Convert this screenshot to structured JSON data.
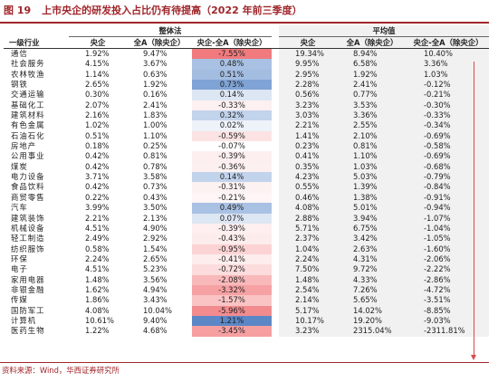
{
  "figure": {
    "number": "图 19",
    "title": "上市央企的研发投入占比仍有待提高（2022 年前三季度）"
  },
  "table": {
    "group_overall": "整体法",
    "group_average": "平均值",
    "col_industry": "一级行业",
    "col_soe": "央企",
    "col_all_a": "全A（除央企）",
    "col_diff": "央企-全A（除央企）",
    "rows": [
      {
        "industry": "通信",
        "o_soe": "1.92%",
        "o_all": "9.47%",
        "o_diff": "-7.55%",
        "o_color": "#f07a7d",
        "a_soe": "19.34%",
        "a_all": "8.94%",
        "a_diff": "10.40%"
      },
      {
        "industry": "社会服务",
        "o_soe": "4.15%",
        "o_all": "3.67%",
        "o_diff": "0.48%",
        "o_color": "#a9c1e3",
        "a_soe": "9.95%",
        "a_all": "6.58%",
        "a_diff": "3.36%"
      },
      {
        "industry": "农林牧渔",
        "o_soe": "1.14%",
        "o_all": "0.63%",
        "o_diff": "0.51%",
        "o_color": "#a3bde1",
        "a_soe": "2.95%",
        "a_all": "1.92%",
        "a_diff": "1.03%"
      },
      {
        "industry": "钢铁",
        "o_soe": "2.65%",
        "o_all": "1.92%",
        "o_diff": "0.73%",
        "o_color": "#7fa3d5",
        "a_soe": "2.28%",
        "a_all": "2.41%",
        "a_diff": "-0.12%"
      },
      {
        "industry": "交通运输",
        "o_soe": "0.30%",
        "o_all": "0.16%",
        "o_diff": "0.14%",
        "o_color": "#dde6f3",
        "a_soe": "0.56%",
        "a_all": "0.77%",
        "a_diff": "-0.21%"
      },
      {
        "industry": "基础化工",
        "o_soe": "2.07%",
        "o_all": "2.41%",
        "o_diff": "-0.33%",
        "o_color": "#fdf0f0",
        "a_soe": "3.23%",
        "a_all": "3.53%",
        "a_diff": "-0.30%"
      },
      {
        "industry": "建筑材料",
        "o_soe": "2.16%",
        "o_all": "1.83%",
        "o_diff": "0.32%",
        "o_color": "#c2d3ec",
        "a_soe": "3.03%",
        "a_all": "3.36%",
        "a_diff": "-0.33%"
      },
      {
        "industry": "有色金属",
        "o_soe": "1.02%",
        "o_all": "1.00%",
        "o_diff": "0.02%",
        "o_color": "#eef2f9",
        "a_soe": "2.21%",
        "a_all": "2.55%",
        "a_diff": "-0.34%"
      },
      {
        "industry": "石油石化",
        "o_soe": "0.51%",
        "o_all": "1.10%",
        "o_diff": "-0.59%",
        "o_color": "#fce3e3",
        "a_soe": "1.41%",
        "a_all": "2.10%",
        "a_diff": "-0.69%"
      },
      {
        "industry": "房地产",
        "o_soe": "0.18%",
        "o_all": "0.25%",
        "o_diff": "-0.07%",
        "o_color": "#ffffff",
        "a_soe": "0.23%",
        "a_all": "0.81%",
        "a_diff": "-0.58%"
      },
      {
        "industry": "公用事业",
        "o_soe": "0.42%",
        "o_all": "0.81%",
        "o_diff": "-0.39%",
        "o_color": "#fdefef",
        "a_soe": "0.41%",
        "a_all": "1.10%",
        "a_diff": "-0.69%"
      },
      {
        "industry": "煤炭",
        "o_soe": "0.42%",
        "o_all": "0.78%",
        "o_diff": "-0.36%",
        "o_color": "#fdf0f0",
        "a_soe": "0.35%",
        "a_all": "1.03%",
        "a_diff": "-0.68%"
      },
      {
        "industry": "电力设备",
        "o_soe": "3.71%",
        "o_all": "3.58%",
        "o_diff": "0.14%",
        "o_color": "#c2d3ec",
        "a_soe": "4.23%",
        "a_all": "5.03%",
        "a_diff": "-0.79%"
      },
      {
        "industry": "食品饮料",
        "o_soe": "0.42%",
        "o_all": "0.73%",
        "o_diff": "-0.31%",
        "o_color": "#fdf2f2",
        "a_soe": "0.55%",
        "a_all": "1.39%",
        "a_diff": "-0.84%"
      },
      {
        "industry": "商贸零售",
        "o_soe": "0.22%",
        "o_all": "0.43%",
        "o_diff": "-0.21%",
        "o_color": "#fef6f6",
        "a_soe": "0.46%",
        "a_all": "1.38%",
        "a_diff": "-0.91%"
      },
      {
        "industry": "汽车",
        "o_soe": "3.99%",
        "o_all": "3.50%",
        "o_diff": "0.49%",
        "o_color": "#a9c1e3",
        "a_soe": "4.08%",
        "a_all": "5.01%",
        "a_diff": "-0.94%"
      },
      {
        "industry": "建筑装饰",
        "o_soe": "2.21%",
        "o_all": "2.13%",
        "o_diff": "0.07%",
        "o_color": "#dde6f3",
        "a_soe": "2.88%",
        "a_all": "3.94%",
        "a_diff": "-1.07%"
      },
      {
        "industry": "机械设备",
        "o_soe": "4.51%",
        "o_all": "4.90%",
        "o_diff": "-0.39%",
        "o_color": "#fdefef",
        "a_soe": "5.71%",
        "a_all": "6.75%",
        "a_diff": "-1.04%"
      },
      {
        "industry": "轻工制造",
        "o_soe": "2.49%",
        "o_all": "2.92%",
        "o_diff": "-0.43%",
        "o_color": "#fdecec",
        "a_soe": "2.37%",
        "a_all": "3.42%",
        "a_diff": "-1.05%"
      },
      {
        "industry": "纺织服饰",
        "o_soe": "0.58%",
        "o_all": "1.54%",
        "o_diff": "-0.95%",
        "o_color": "#fcd3d4",
        "a_soe": "1.04%",
        "a_all": "2.63%",
        "a_diff": "-1.60%"
      },
      {
        "industry": "环保",
        "o_soe": "2.24%",
        "o_all": "2.65%",
        "o_diff": "-0.41%",
        "o_color": "#fdeded",
        "a_soe": "2.24%",
        "a_all": "4.31%",
        "a_diff": "-2.06%"
      },
      {
        "industry": "电子",
        "o_soe": "4.51%",
        "o_all": "5.23%",
        "o_diff": "-0.72%",
        "o_color": "#fcdcdc",
        "a_soe": "7.50%",
        "a_all": "9.72%",
        "a_diff": "-2.22%"
      },
      {
        "industry": "家用电器",
        "o_soe": "1.48%",
        "o_all": "3.56%",
        "o_diff": "-2.08%",
        "o_color": "#f9b9ba",
        "a_soe": "1.48%",
        "a_all": "4.33%",
        "a_diff": "-2.86%"
      },
      {
        "industry": "非银金融",
        "o_soe": "1.62%",
        "o_all": "4.94%",
        "o_diff": "-3.32%",
        "o_color": "#f6a1a3",
        "a_soe": "2.54%",
        "a_all": "7.26%",
        "a_diff": "-4.72%"
      },
      {
        "industry": "传媒",
        "o_soe": "1.86%",
        "o_all": "3.43%",
        "o_diff": "-1.57%",
        "o_color": "#fac4c5",
        "a_soe": "2.14%",
        "a_all": "5.65%",
        "a_diff": "-3.51%"
      },
      {
        "industry": "国防军工",
        "o_soe": "4.08%",
        "o_all": "10.04%",
        "o_diff": "-5.96%",
        "o_color": "#f28b8e",
        "a_soe": "5.17%",
        "a_all": "14.02%",
        "a_diff": "-8.85%"
      },
      {
        "industry": "计算机",
        "o_soe": "10.61%",
        "o_all": "9.40%",
        "o_diff": "1.21%",
        "o_color": "#5b87c6",
        "a_soe": "10.17%",
        "a_all": "19.20%",
        "a_diff": "-9.03%"
      },
      {
        "industry": "医药生物",
        "o_soe": "1.22%",
        "o_all": "4.68%",
        "o_diff": "-3.45%",
        "o_color": "#f69fa1",
        "a_soe": "3.23%",
        "a_all": "2315.04%",
        "a_diff": "-2311.81%"
      }
    ]
  },
  "footer": {
    "source": "资料来源：Wind，华西证券研究所"
  },
  "colors": {
    "brand": "#a0262b",
    "arrow": "#d94a4a",
    "avg_shade": "#f1f1f1"
  }
}
